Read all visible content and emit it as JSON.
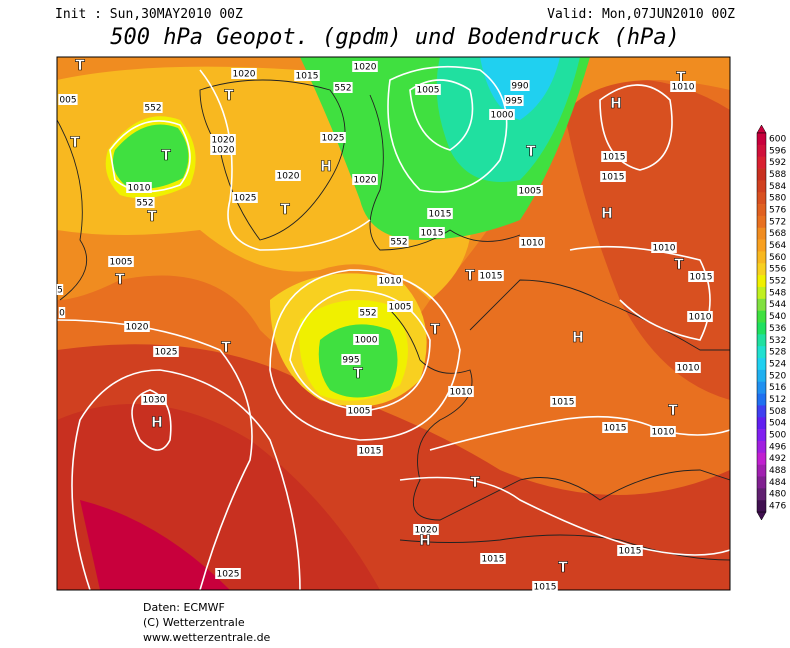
{
  "header": {
    "init": "Init : Sun,30MAY2010 00Z",
    "valid": "Valid: Mon,07JUN2010 00Z",
    "title": "500 hPa Geopot. (gpdm) und Bodendruck (hPa)"
  },
  "colorbar": {
    "levels": [
      600,
      596,
      592,
      588,
      584,
      580,
      576,
      572,
      568,
      564,
      560,
      556,
      552,
      548,
      544,
      540,
      536,
      532,
      528,
      524,
      520,
      516,
      512,
      508,
      504,
      500,
      496,
      492,
      488,
      484,
      480,
      476
    ],
    "colors": [
      "#c8003c",
      "#d0103a",
      "#d82030",
      "#c83020",
      "#d04020",
      "#d85020",
      "#e06020",
      "#e87020",
      "#f08c20",
      "#f8a020",
      "#f8b820",
      "#f8d020",
      "#f0f000",
      "#c0f020",
      "#80e040",
      "#40e040",
      "#20e060",
      "#20e0a0",
      "#20e0d0",
      "#20d0f0",
      "#20b0f0",
      "#2090f0",
      "#2070f0",
      "#4040f0",
      "#6020f0",
      "#8020f0",
      "#a020e0",
      "#c020d0",
      "#a020b0",
      "#802090",
      "#602070",
      "#401050"
    ]
  },
  "map_labels": [
    "T",
    "005",
    "552",
    "1020",
    "1015",
    "1020",
    "552",
    "1005",
    "990",
    "995",
    "1000",
    "T",
    "T",
    "T",
    "1020",
    "1020",
    "1025",
    "H",
    "H",
    "T",
    "1010",
    "1020",
    "1020",
    "1010",
    "552",
    "T",
    "1025",
    "T",
    "1015",
    "1015",
    "552",
    "1005",
    "T",
    "1015",
    "1015",
    "H",
    "1010",
    "1010",
    "T",
    "1015",
    "1010",
    "1005",
    "T",
    "5",
    "0",
    "1010",
    "1005",
    "T",
    "1015",
    "552",
    "1000",
    "T",
    "H",
    "1020",
    "1025",
    "T",
    "995",
    "T",
    "1010",
    "1010",
    "1030",
    "H",
    "1005",
    "1015",
    "1015",
    "1010",
    "T",
    "1015",
    "T",
    "1020",
    "H",
    "1015",
    "1015",
    "1025",
    "T",
    "1015"
  ],
  "footer": [
    "Daten: ECMWF",
    "(C) Wetterzentrale",
    "www.wetterzentrale.de"
  ]
}
